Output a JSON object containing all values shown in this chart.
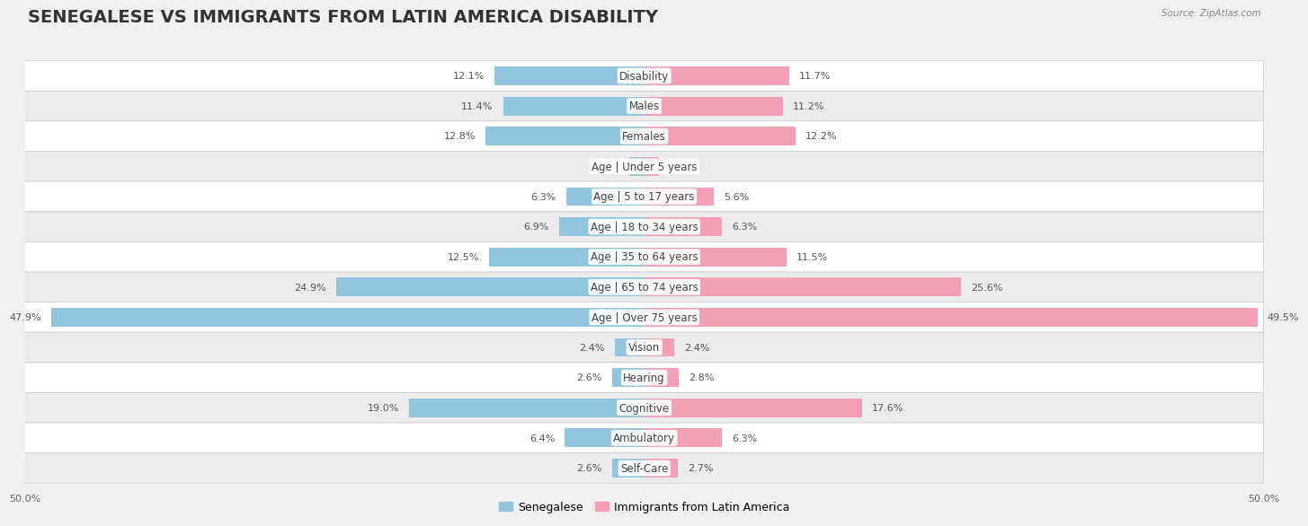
{
  "title": "SENEGALESE VS IMMIGRANTS FROM LATIN AMERICA DISABILITY",
  "source": "Source: ZipAtlas.com",
  "categories": [
    "Disability",
    "Males",
    "Females",
    "Age | Under 5 years",
    "Age | 5 to 17 years",
    "Age | 18 to 34 years",
    "Age | 35 to 64 years",
    "Age | 65 to 74 years",
    "Age | Over 75 years",
    "Vision",
    "Hearing",
    "Cognitive",
    "Ambulatory",
    "Self-Care"
  ],
  "left_values": [
    12.1,
    11.4,
    12.8,
    1.2,
    6.3,
    6.9,
    12.5,
    24.9,
    47.9,
    2.4,
    2.6,
    19.0,
    6.4,
    2.6
  ],
  "right_values": [
    11.7,
    11.2,
    12.2,
    1.2,
    5.6,
    6.3,
    11.5,
    25.6,
    49.5,
    2.4,
    2.8,
    17.6,
    6.3,
    2.7
  ],
  "left_color": "#92C5DE",
  "right_color": "#F4A0B4",
  "left_label": "Senegalese",
  "right_label": "Immigrants from Latin America",
  "max_val": 50.0,
  "bg_color": "#f0f0f0",
  "row_color_even": "#ffffff",
  "row_color_odd": "#ebebeb",
  "title_fontsize": 14,
  "label_fontsize": 8.5,
  "value_fontsize": 8,
  "axis_tick_fontsize": 8
}
